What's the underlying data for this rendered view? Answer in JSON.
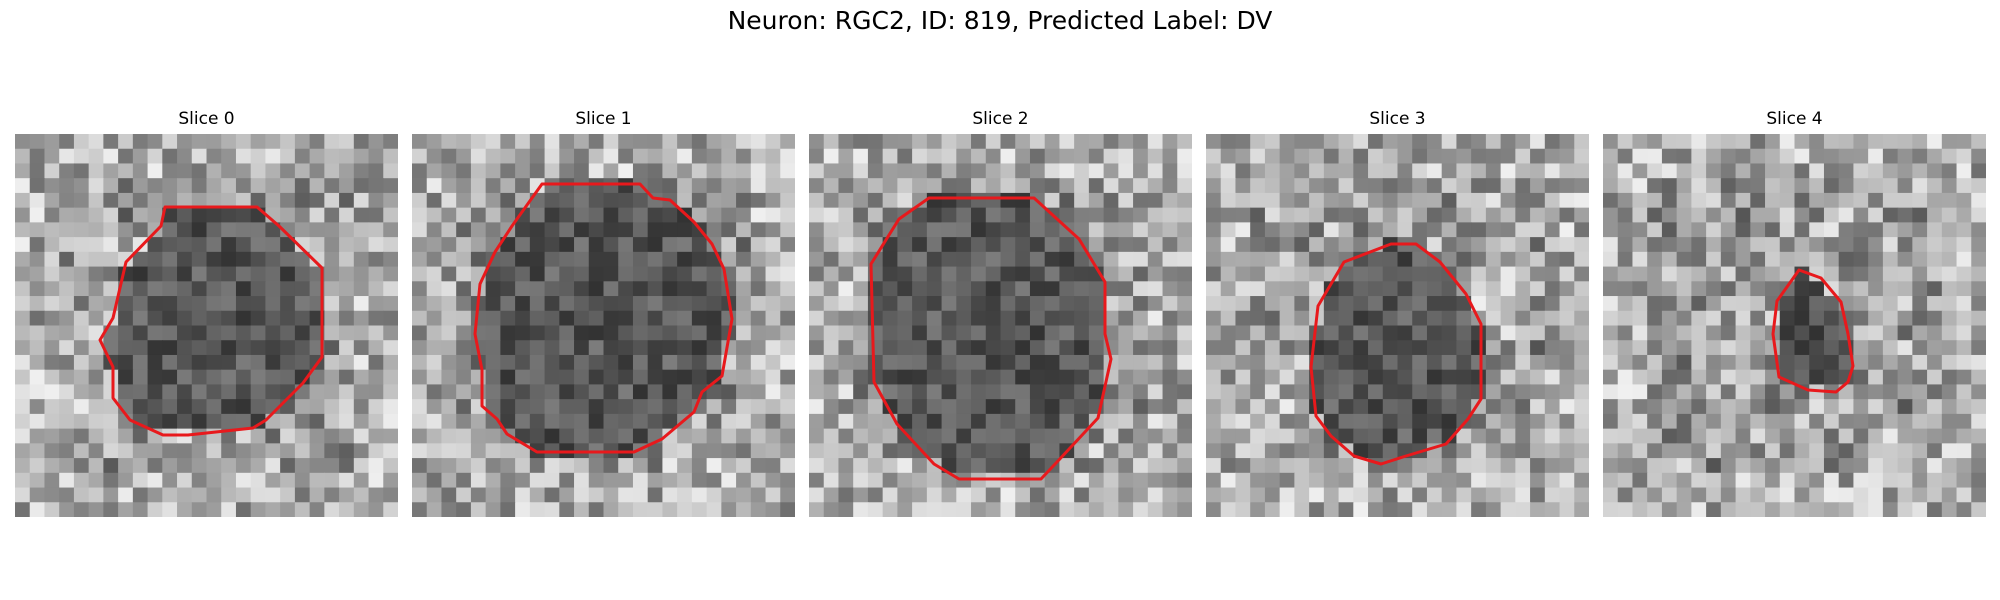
{
  "figure": {
    "title": "Neuron: RGC2, ID: 819, Predicted Label: DV",
    "contour_color": "#e8191c",
    "image_style": "grayscale noisy pixel grid",
    "panels": [
      {
        "label": "Slice 0",
        "seed": 11,
        "cells": 26
      },
      {
        "label": "Slice 1",
        "seed": 23,
        "cells": 26
      },
      {
        "label": "Slice 2",
        "seed": 37,
        "cells": 26
      },
      {
        "label": "Slice 3",
        "seed": 53,
        "cells": 26
      },
      {
        "label": "Slice 4",
        "seed": 71,
        "cells": 26
      }
    ]
  }
}
